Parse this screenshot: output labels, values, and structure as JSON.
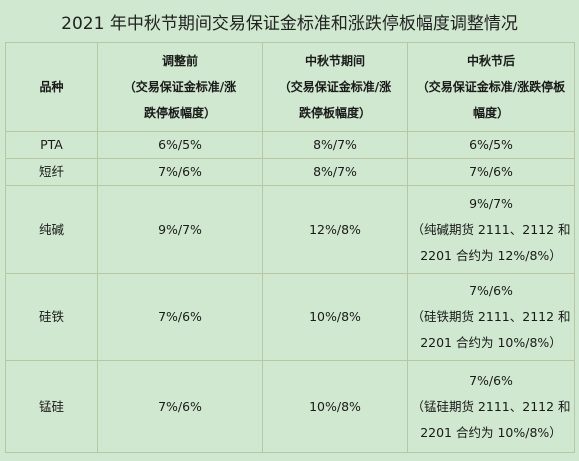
{
  "title": "2021 年中秋节期间交易保证金标准和涨跌停板幅度调整情况",
  "headers": {
    "variety": "品种",
    "before": [
      "调整前",
      "（交易保证金标准/涨",
      "跌停板幅度）"
    ],
    "during": [
      "中秋节期间",
      "（交易保证金标准/涨",
      "跌停板幅度）"
    ],
    "after": [
      "中秋节后",
      "（交易保证金标准/涨跌停板",
      "幅度）"
    ]
  },
  "rows": [
    {
      "name": "PTA",
      "before": "6%/5%",
      "during": "8%/7%",
      "after": [
        "6%/5%"
      ]
    },
    {
      "name": "短纤",
      "before": "7%/6%",
      "during": "8%/7%",
      "after": [
        "7%/6%"
      ]
    },
    {
      "name": "纯碱",
      "before": "9%/7%",
      "during": "12%/8%",
      "after": [
        "9%/7%",
        "（纯碱期货 2111、2112 和",
        "2201 合约为 12%/8%）"
      ]
    },
    {
      "name": "硅铁",
      "before": "7%/6%",
      "during": "10%/8%",
      "after": [
        "7%/6%",
        "（硅铁期货 2111、2112 和",
        "2201 合约为 10%/8%）"
      ]
    },
    {
      "name": "锰硅",
      "before": "7%/6%",
      "during": "10%/8%",
      "after": [
        "7%/6%",
        "（锰硅期货 2111、2112 和",
        "2201 合约为 10%/8%）"
      ]
    }
  ]
}
